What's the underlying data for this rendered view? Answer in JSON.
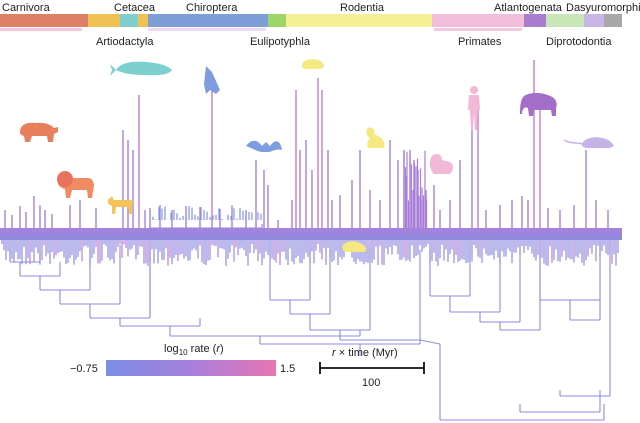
{
  "clades": [
    {
      "key": "carnivora",
      "label": "Carnivora",
      "color": "#dd8066"
    },
    {
      "key": "artiodactyla",
      "label": "Artiodactyla",
      "color": "#f0c255"
    },
    {
      "key": "cetacea",
      "label": "Cetacea",
      "color": "#7fcfcf"
    },
    {
      "key": "chiroptera",
      "label": "Chiroptera",
      "color": "#7d9fd6"
    },
    {
      "key": "eulipotyphla",
      "label": "Eulipotyphla",
      "color": "#9ed56b"
    },
    {
      "key": "rodentia",
      "label": "Rodentia",
      "color": "#f5f094"
    },
    {
      "key": "primates",
      "label": "Primates",
      "color": "#f3bedc"
    },
    {
      "key": "atlantogenata",
      "label": "Atlantogenata",
      "color": "#a87ccf"
    },
    {
      "key": "diprotodontia",
      "label": "Diprotodontia",
      "color": "#c8e6b8"
    },
    {
      "key": "dasyuromorphia",
      "label": "Dasyuromorphia",
      "color": "#c9b6e6"
    },
    {
      "key": "other",
      "label": "",
      "color": "#a9a9a9"
    }
  ],
  "legend": {
    "title_prefix": "log",
    "title_sub": "10",
    "title_suffix": " rate (",
    "title_var": "r",
    "title_close": ")",
    "min_label": "−0.75",
    "max_label": "1.5",
    "gradient_start": "#7b8ee6",
    "gradient_mid": "#a77fdc",
    "gradient_end": "#e875b4"
  },
  "scale": {
    "title_var": "r",
    "title_rest": " × time (Myr)",
    "value": "100"
  },
  "icons": [
    "bear-icon",
    "whale-icon",
    "bat-icon",
    "mouse-icon",
    "human-icon",
    "elephant-icon",
    "lion-icon",
    "deer-icon",
    "bat-flying-icon",
    "squirrel-icon",
    "monkey-icon",
    "rat-icon",
    "jerboa-icon"
  ]
}
